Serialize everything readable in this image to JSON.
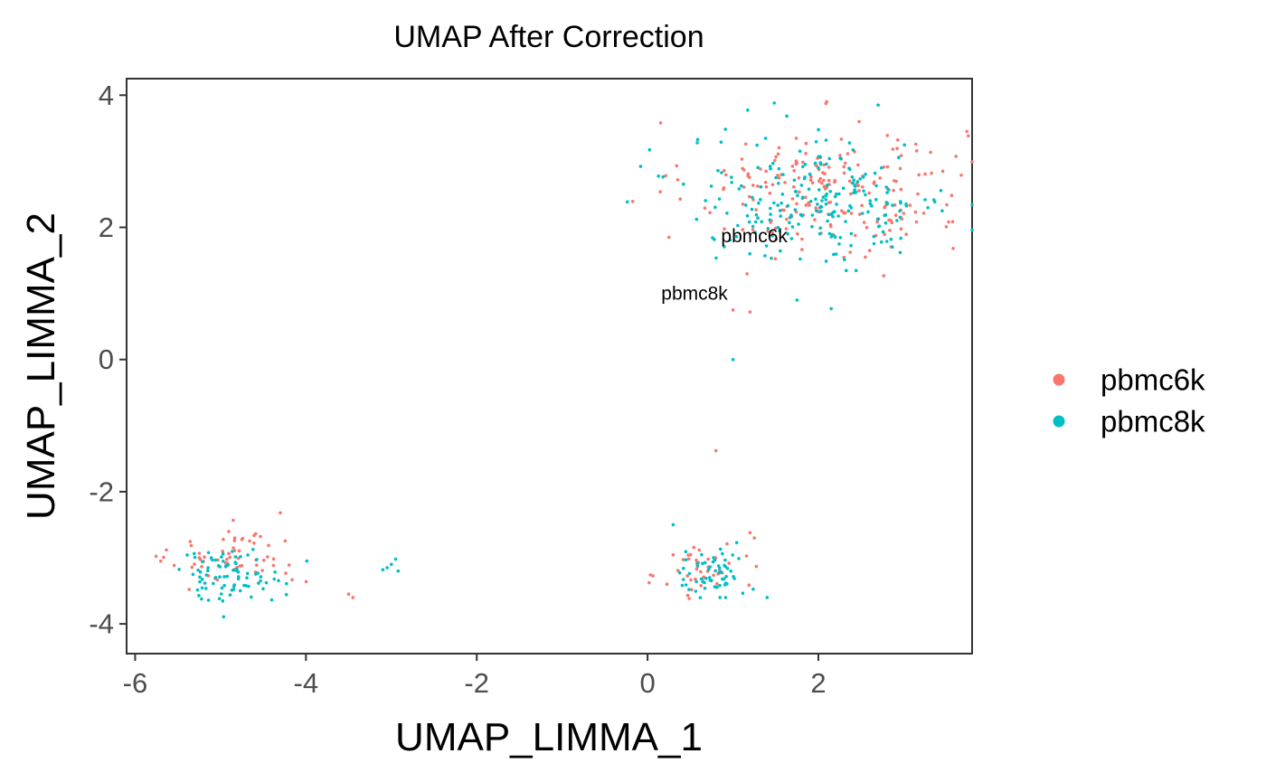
{
  "chart_data": {
    "type": "scatter",
    "title": "UMAP After Correction",
    "xlabel": "UMAP_LIMMA_1",
    "ylabel": "UMAP_LIMMA_2",
    "xlim": [
      -6.1,
      3.8
    ],
    "ylim": [
      -4.45,
      4.25
    ],
    "x_ticks": [
      -6,
      -4,
      -2,
      0,
      2
    ],
    "y_ticks": [
      -4,
      -2,
      0,
      2,
      4
    ],
    "grid": false,
    "legend_position": "right",
    "series": [
      {
        "name": "pbmc6k",
        "color": "#F8766D",
        "clusters": [
          {
            "center": [
              2.1,
              2.6
            ],
            "spread": [
              1.15,
              0.72
            ],
            "n": 210
          },
          {
            "center": [
              -4.8,
              -3.0
            ],
            "spread": [
              0.55,
              0.3
            ],
            "n": 60
          },
          {
            "center": [
              0.65,
              -3.2
            ],
            "spread": [
              0.35,
              0.3
            ],
            "n": 40
          }
        ],
        "points": [
          [
            1.0,
            0.75
          ],
          [
            1.2,
            0.72
          ],
          [
            0.8,
            -1.38
          ],
          [
            1.25,
            -2.7
          ],
          [
            1.2,
            -2.62
          ],
          [
            -4.3,
            -2.32
          ],
          [
            -5.7,
            -3.05
          ],
          [
            -3.45,
            -3.6
          ],
          [
            -3.5,
            -3.55
          ],
          [
            2.55,
            1.55
          ],
          [
            2.6,
            1.65
          ],
          [
            0.25,
            1.85
          ]
        ]
      },
      {
        "name": "pbmc8k",
        "color": "#00BFC4",
        "clusters": [
          {
            "center": [
              2.0,
              2.4
            ],
            "spread": [
              1.1,
              0.7
            ],
            "n": 230
          },
          {
            "center": [
              -4.9,
              -3.25
            ],
            "spread": [
              0.45,
              0.28
            ],
            "n": 85
          },
          {
            "center": [
              0.75,
              -3.25
            ],
            "spread": [
              0.3,
              0.27
            ],
            "n": 60
          }
        ],
        "points": [
          [
            -3.05,
            -3.15
          ],
          [
            -3.0,
            -3.1
          ],
          [
            -2.95,
            -3.02
          ],
          [
            -3.1,
            -3.18
          ],
          [
            -2.92,
            -3.2
          ],
          [
            1.0,
            0.0
          ],
          [
            2.15,
            0.77
          ],
          [
            1.75,
            0.9
          ],
          [
            0.3,
            -2.5
          ],
          [
            1.4,
            -3.6
          ],
          [
            3.45,
            2.25
          ],
          [
            2.7,
            3.85
          ]
        ]
      }
    ],
    "annotations": [
      {
        "text": "pbmc6k",
        "x": 1.25,
        "y": 1.85
      },
      {
        "text": "pbmc8k",
        "x": 0.55,
        "y": 0.98
      }
    ]
  }
}
